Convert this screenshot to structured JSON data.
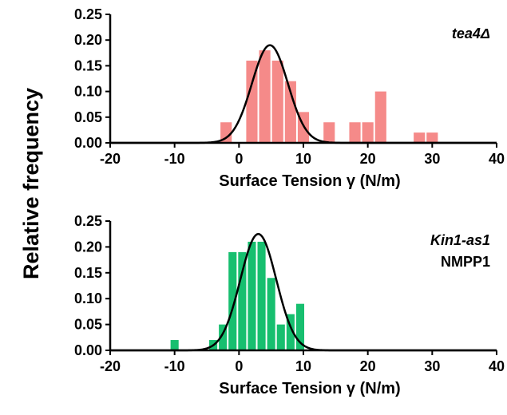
{
  "shared_ylabel": "Relative frequency",
  "chart_data": [
    {
      "type": "bar",
      "subtype": "histogram-with-gaussian-fit",
      "annotation": [
        "tea4Δ"
      ],
      "annotation_italic": [
        true
      ],
      "xlabel": "Surface Tension γ (N/m)",
      "ylabel": "Relative frequency",
      "xlim": [
        -20,
        40
      ],
      "ylim": [
        0,
        0.25
      ],
      "xticks": [
        -20,
        -10,
        0,
        10,
        20,
        30,
        40
      ],
      "xtick_labels": [
        "-20",
        "-10",
        "0",
        "10",
        "20",
        "30",
        "40"
      ],
      "yticks": [
        0,
        0.05,
        0.1,
        0.15,
        0.2,
        0.25
      ],
      "ytick_labels": [
        "0.00",
        "0.05",
        "0.10",
        "0.15",
        "0.20",
        "0.25"
      ],
      "bin_width": 2,
      "bin_centers": [
        -2,
        2,
        4,
        6,
        8,
        10,
        14,
        18,
        20,
        22,
        28,
        30
      ],
      "values": [
        0.04,
        0.16,
        0.18,
        0.16,
        0.12,
        0.06,
        0.04,
        0.04,
        0.04,
        0.1,
        0.02,
        0.02
      ],
      "bar_color": "#F58A89",
      "fit": {
        "type": "gaussian",
        "mean": 4.8,
        "sd": 2.8,
        "peak": 0.19,
        "color": "#000000"
      },
      "grid": false,
      "legend": "none"
    },
    {
      "type": "bar",
      "subtype": "histogram-with-gaussian-fit",
      "annotation": [
        "Kin1-as1",
        "NMPP1"
      ],
      "annotation_italic": [
        true,
        false
      ],
      "xlabel": "Surface Tension γ (N/m)",
      "ylabel": "Relative frequency",
      "xlim": [
        -20,
        40
      ],
      "ylim": [
        0,
        0.25
      ],
      "xticks": [
        -20,
        -10,
        0,
        10,
        20,
        30,
        40
      ],
      "xtick_labels": [
        "-20",
        "-10",
        "0",
        "10",
        "20",
        "30",
        "40"
      ],
      "yticks": [
        0,
        0.05,
        0.1,
        0.15,
        0.2,
        0.25
      ],
      "ytick_labels": [
        "0.00",
        "0.05",
        "0.10",
        "0.15",
        "0.20",
        "0.25"
      ],
      "bin_width": 1.5,
      "bin_centers": [
        -10,
        -4,
        -2.5,
        -1,
        0.5,
        2,
        3.5,
        5,
        6.5,
        8,
        9.5
      ],
      "values": [
        0.02,
        0.02,
        0.05,
        0.19,
        0.19,
        0.21,
        0.21,
        0.14,
        0.05,
        0.07,
        0.09
      ],
      "bar_color": "#17BF6F",
      "fit": {
        "type": "gaussian",
        "mean": 3.0,
        "sd": 2.8,
        "peak": 0.225,
        "color": "#000000"
      },
      "grid": false,
      "legend": "none"
    }
  ]
}
